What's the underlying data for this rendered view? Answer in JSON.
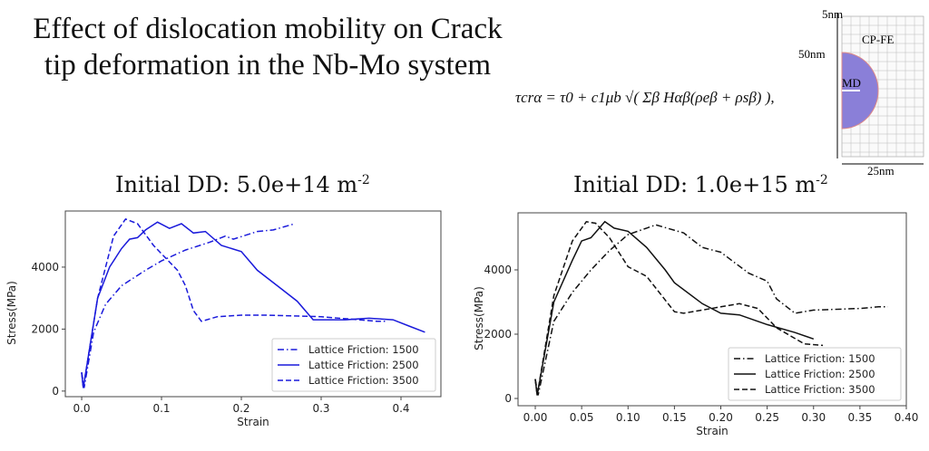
{
  "slide": {
    "title_line1": "Effect of dislocation mobility on Crack",
    "title_line2": "tip deformation in the Nb-Mo system",
    "equation": "τcrα = τ0 + c1μb √( Σβ Hαβ(ρeβ + ρsβ) ),",
    "diagram": {
      "label_top": "5nm",
      "label_left": "50nm",
      "label_region_outer": "CP-FE",
      "label_region_inner": "MD",
      "label_bottom": "25nm",
      "inner_color": "#8a7fd8"
    }
  },
  "chart_data": [
    {
      "type": "line",
      "title": "Initial DD: 5.0e+14 m",
      "title_sup": "-2",
      "xlabel": "Strain",
      "ylabel": "Stress(MPa)",
      "xlim": [
        -0.0205,
        0.45
      ],
      "ylim": [
        -180,
        5810
      ],
      "xticks": [
        0,
        0.1,
        0.2,
        0.3,
        0.4
      ],
      "xtick_labels": [
        "0.0",
        "0.1",
        "0.2",
        "0.3",
        "0.4"
      ],
      "yticks": [
        0,
        2000,
        4000
      ],
      "ytick_labels": [
        "0",
        "2000",
        "4000"
      ],
      "grid": false,
      "legend": "bottom-right",
      "color": "#1a1adb",
      "series": [
        {
          "name": "Lattice Friction: 1500",
          "dash": "dashdot",
          "x": [
            0,
            0.003,
            0.015,
            0.03,
            0.05,
            0.08,
            0.1,
            0.13,
            0.16,
            0.18,
            0.19,
            0.22,
            0.24,
            0.267
          ],
          "y": [
            600,
            100,
            1900,
            2800,
            3400,
            3900,
            4200,
            4550,
            4800,
            5000,
            4900,
            5150,
            5200,
            5400
          ]
        },
        {
          "name": "Lattice Friction: 2500",
          "dash": "solid",
          "x": [
            0,
            0.002,
            0.02,
            0.035,
            0.05,
            0.06,
            0.07,
            0.08,
            0.095,
            0.11,
            0.125,
            0.14,
            0.155,
            0.175,
            0.2,
            0.22,
            0.25,
            0.27,
            0.29,
            0.33,
            0.36,
            0.39,
            0.41,
            0.43
          ],
          "y": [
            600,
            100,
            3000,
            4000,
            4600,
            4900,
            4950,
            5200,
            5450,
            5250,
            5400,
            5100,
            5150,
            4700,
            4500,
            3900,
            3300,
            2900,
            2300,
            2300,
            2350,
            2300,
            2100,
            1900
          ]
        },
        {
          "name": "Lattice Friction: 3500",
          "dash": "dashed",
          "x": [
            0,
            0.002,
            0.02,
            0.04,
            0.055,
            0.07,
            0.09,
            0.12,
            0.13,
            0.14,
            0.15,
            0.17,
            0.2,
            0.23,
            0.3,
            0.37,
            0.38
          ],
          "y": [
            600,
            100,
            3000,
            5000,
            5550,
            5400,
            4700,
            3900,
            3400,
            2600,
            2250,
            2400,
            2450,
            2450,
            2400,
            2250,
            2250
          ]
        }
      ]
    },
    {
      "type": "line",
      "title": "Initial DD: 1.0e+15 m",
      "title_sup": "-2",
      "xlabel": "Strain",
      "ylabel": "Stress(MPa)",
      "xlim": [
        -0.0186,
        0.4
      ],
      "ylim": [
        -225,
        5775
      ],
      "xticks": [
        0,
        0.05,
        0.1,
        0.15,
        0.2,
        0.25,
        0.3,
        0.35,
        0.4
      ],
      "xtick_labels": [
        "0.00",
        "0.05",
        "0.10",
        "0.15",
        "0.20",
        "0.25",
        "0.30",
        "0.35",
        "0.40"
      ],
      "yticks": [
        0,
        2000,
        4000
      ],
      "ytick_labels": [
        "0",
        "2000",
        "4000"
      ],
      "grid": false,
      "legend": "bottom-right",
      "color": "#111111",
      "series": [
        {
          "name": "Lattice Friction: 1500",
          "dash": "dashdot",
          "x": [
            0,
            0.003,
            0.02,
            0.04,
            0.06,
            0.08,
            0.1,
            0.12,
            0.13,
            0.16,
            0.18,
            0.2,
            0.23,
            0.25,
            0.26,
            0.28,
            0.3,
            0.35,
            0.37,
            0.38
          ],
          "y": [
            600,
            100,
            2400,
            3300,
            4000,
            4600,
            5100,
            5300,
            5400,
            5150,
            4700,
            4550,
            3900,
            3650,
            3100,
            2650,
            2750,
            2800,
            2850,
            2850
          ]
        },
        {
          "name": "Lattice Friction: 2500",
          "dash": "solid",
          "x": [
            0,
            0.002,
            0.02,
            0.04,
            0.05,
            0.06,
            0.075,
            0.085,
            0.1,
            0.12,
            0.14,
            0.15,
            0.18,
            0.2,
            0.22,
            0.25,
            0.28,
            0.3
          ],
          "y": [
            600,
            100,
            3000,
            4300,
            4900,
            5000,
            5500,
            5300,
            5200,
            4700,
            4000,
            3600,
            2950,
            2650,
            2600,
            2300,
            2050,
            1850
          ]
        },
        {
          "name": "Lattice Friction: 3500",
          "dash": "dashed",
          "x": [
            0,
            0.002,
            0.02,
            0.04,
            0.055,
            0.065,
            0.08,
            0.1,
            0.12,
            0.15,
            0.16,
            0.2,
            0.22,
            0.24,
            0.26,
            0.29,
            0.31
          ],
          "y": [
            600,
            100,
            3200,
            4900,
            5500,
            5450,
            5000,
            4100,
            3800,
            2700,
            2650,
            2850,
            2950,
            2800,
            2200,
            1700,
            1650
          ]
        }
      ]
    }
  ]
}
